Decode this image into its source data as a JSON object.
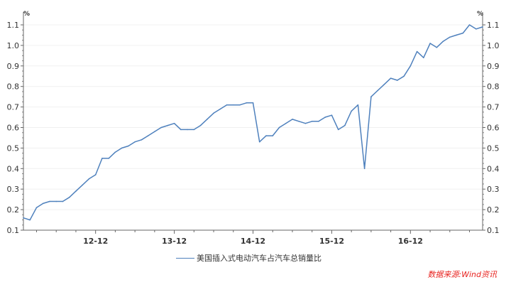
{
  "chart_data": {
    "type": "line",
    "title": "",
    "xlabel": "",
    "ylabel": "%",
    "y2label": "%",
    "ylim": [
      0.1,
      1.1
    ],
    "yticks": [
      "0.1",
      "0.2",
      "0.3",
      "0.4",
      "0.5",
      "0.6",
      "0.7",
      "0.8",
      "0.9",
      "1.0",
      "1.1"
    ],
    "x_start": "2012-01",
    "x_end": "2017-11",
    "xtick_labels": [
      "12-12",
      "13-12",
      "14-12",
      "15-12",
      "16-12"
    ],
    "grid": "horizontal",
    "legend_placement": "bottom",
    "series": [
      {
        "name": "美国插入式电动汽车占汽车总销量比",
        "color": "#4f81bd",
        "values": [
          0.16,
          0.15,
          0.21,
          0.23,
          0.24,
          0.24,
          0.24,
          0.26,
          0.29,
          0.32,
          0.35,
          0.37,
          0.45,
          0.45,
          0.48,
          0.5,
          0.51,
          0.53,
          0.54,
          0.56,
          0.58,
          0.6,
          0.61,
          0.62,
          0.59,
          0.59,
          0.59,
          0.61,
          0.64,
          0.67,
          0.69,
          0.71,
          0.71,
          0.71,
          0.72,
          0.72,
          0.53,
          0.56,
          0.56,
          0.6,
          0.62,
          0.64,
          0.63,
          0.62,
          0.63,
          0.63,
          0.65,
          0.66,
          0.59,
          0.61,
          0.68,
          0.71,
          0.4,
          0.75,
          0.78,
          0.81,
          0.84,
          0.83,
          0.85,
          0.9,
          0.97,
          0.94,
          1.01,
          0.99,
          1.02,
          1.04,
          1.05,
          1.06,
          1.1,
          1.08,
          1.09
        ]
      }
    ]
  },
  "source": "数据来源:Wind资讯",
  "source_color": "#e8231f"
}
